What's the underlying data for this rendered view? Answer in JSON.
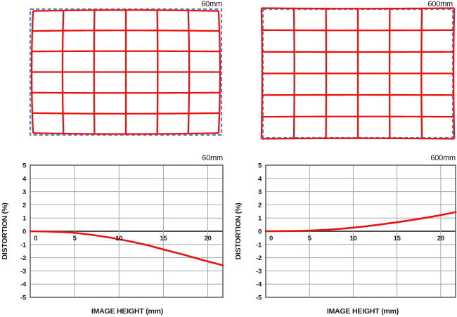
{
  "page": {
    "background": "#ffffff"
  },
  "colors": {
    "grid_red": "#e8140f",
    "reference_blue": "#5f82c6",
    "grid_gray": "#a8a8a8",
    "zero_line": "#333333",
    "axis_frame": "#444444",
    "text": "#1a1a1a"
  },
  "chart_data": [
    {
      "type": "distortion-grid",
      "title": "60mm",
      "distortion": "barrel",
      "distortion_k": -0.03,
      "columns": 6,
      "rows": 6,
      "reference_style": "blue-dashed-rectangle",
      "distorted_style": "red-solid-grid"
    },
    {
      "type": "distortion-grid",
      "title": "600mm",
      "distortion": "pincushion",
      "distortion_k": 0.016,
      "columns": 6,
      "rows": 6,
      "reference_style": "blue-dashed-rectangle",
      "distorted_style": "red-solid-grid"
    },
    {
      "type": "line",
      "title": "60mm",
      "xlabel": "IMAGE HEIGHT (mm)",
      "ylabel": "DISTORTION (%)",
      "xlim": [
        0,
        21.7
      ],
      "ylim": [
        -5,
        5
      ],
      "xticks": [
        0,
        5,
        10,
        15,
        20
      ],
      "yticks": [
        5,
        4,
        3,
        2,
        1,
        0,
        -1,
        -2,
        -3,
        -4,
        -5
      ],
      "grid": true,
      "legend": "none",
      "series": [
        {
          "name": "distortion",
          "color": "#e8140f",
          "points": [
            [
              0,
              0
            ],
            [
              2,
              -0.02
            ],
            [
              4,
              -0.07
            ],
            [
              5,
              -0.12
            ],
            [
              7,
              -0.28
            ],
            [
              9,
              -0.48
            ],
            [
              11,
              -0.73
            ],
            [
              13,
              -1.02
            ],
            [
              15,
              -1.38
            ],
            [
              17,
              -1.72
            ],
            [
              19,
              -2.1
            ],
            [
              20,
              -2.28
            ],
            [
              21.7,
              -2.58
            ]
          ]
        }
      ]
    },
    {
      "type": "line",
      "title": "600mm",
      "xlabel": "IMAGE HEIGHT (mm)",
      "ylabel": "DISTORTION (%)",
      "xlim": [
        0,
        21.7
      ],
      "ylim": [
        -5,
        5
      ],
      "xticks": [
        0,
        5,
        10,
        15,
        20
      ],
      "yticks": [
        5,
        4,
        3,
        2,
        1,
        0,
        -1,
        -2,
        -3,
        -4,
        -5
      ],
      "grid": true,
      "legend": "none",
      "series": [
        {
          "name": "distortion",
          "color": "#e8140f",
          "points": [
            [
              0,
              0
            ],
            [
              2,
              0.01
            ],
            [
              4,
              0.03
            ],
            [
              5,
              0.05
            ],
            [
              7,
              0.11
            ],
            [
              9,
              0.21
            ],
            [
              11,
              0.34
            ],
            [
              13,
              0.5
            ],
            [
              15,
              0.68
            ],
            [
              17,
              0.88
            ],
            [
              19,
              1.1
            ],
            [
              20,
              1.22
            ],
            [
              21.7,
              1.45
            ]
          ]
        }
      ]
    }
  ]
}
